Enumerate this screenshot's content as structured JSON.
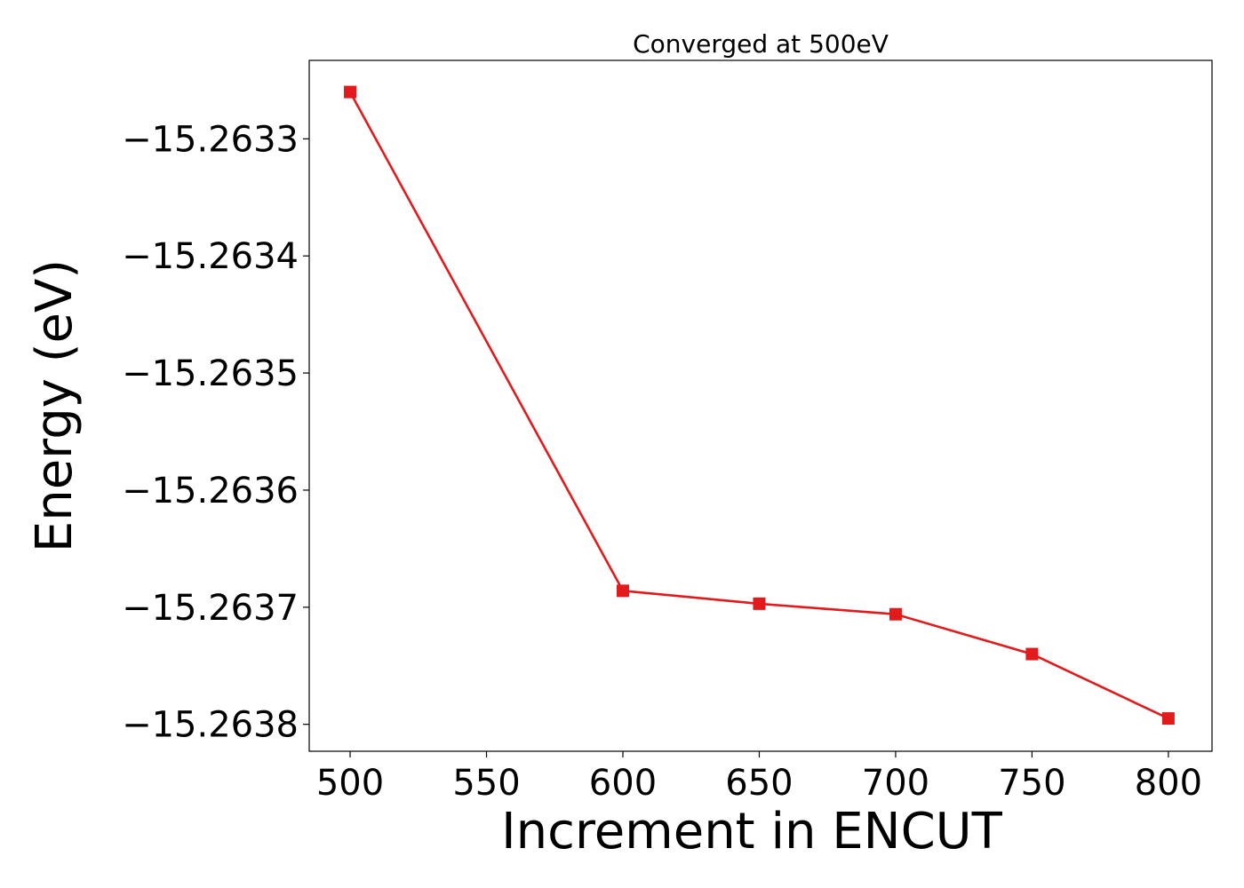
{
  "chart_data": {
    "type": "line",
    "title": "Converged at 500eV",
    "xlabel": "Increment in ENCUT",
    "ylabel": "Energy (eV)",
    "x": [
      500,
      600,
      650,
      700,
      750,
      800
    ],
    "series": [
      {
        "values": [
          -15.26326,
          -15.263686,
          -15.263697,
          -15.263706,
          -15.26374,
          -15.263795
        ],
        "color": "#e31a1c",
        "marker": "square"
      }
    ],
    "xticks": [
      500,
      550,
      600,
      650,
      700,
      750,
      800
    ],
    "xtick_labels": [
      "500",
      "550",
      "600",
      "650",
      "700",
      "750",
      "800"
    ],
    "yticks": [
      -15.2633,
      -15.2634,
      -15.2635,
      -15.2636,
      -15.2637,
      -15.2638
    ],
    "ytick_labels": [
      "−15.2633",
      "−15.2634",
      "−15.2635",
      "−15.2636",
      "−15.2637",
      "−15.2638"
    ],
    "xlim": [
      485,
      816
    ],
    "ylim": [
      -15.263823,
      -15.263233
    ],
    "grid": false,
    "legend": false
  }
}
